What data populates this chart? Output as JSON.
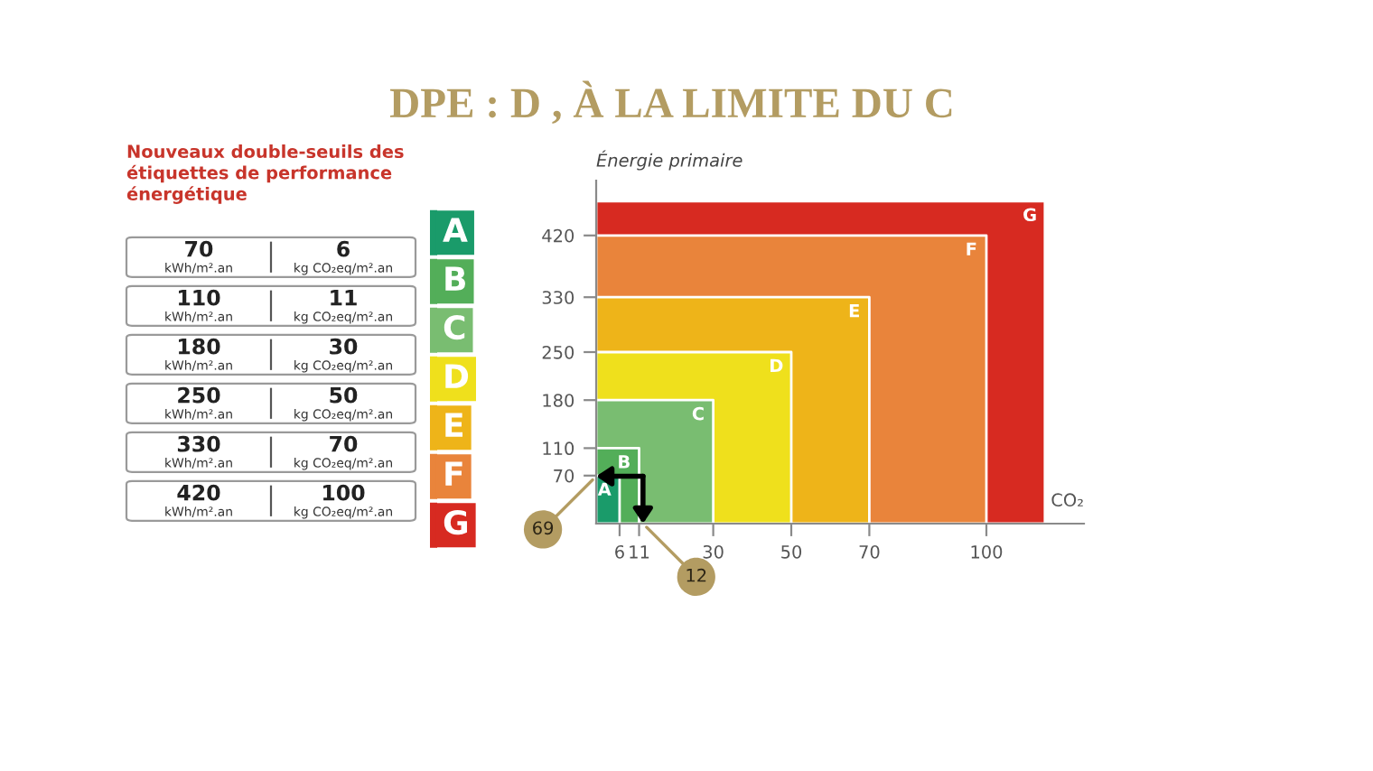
{
  "chart_data": {
    "type": "area",
    "title": "DPE : D , À LA LIMITE DU C",
    "xlabel": "CO₂",
    "ylabel": "Énergie primaire",
    "series": [
      {
        "name": "A",
        "color": "#1a9b6a",
        "x": [
          0,
          6
        ],
        "values": [
          70,
          70
        ]
      },
      {
        "name": "B",
        "color": "#53ae59",
        "x": [
          0,
          11
        ],
        "values": [
          110,
          110
        ]
      },
      {
        "name": "C",
        "color": "#79bd71",
        "x": [
          0,
          30
        ],
        "values": [
          180,
          180
        ]
      },
      {
        "name": "D",
        "color": "#efe01c",
        "x": [
          0,
          50
        ],
        "values": [
          250,
          250
        ]
      },
      {
        "name": "E",
        "color": "#eeb419",
        "x": [
          0,
          70
        ],
        "values": [
          330,
          330
        ]
      },
      {
        "name": "F",
        "color": "#e9843b",
        "x": [
          0,
          100
        ],
        "values": [
          420,
          420
        ]
      },
      {
        "name": "G",
        "color": "#d72a21",
        "x": [
          0,
          115
        ],
        "values": [
          470,
          470
        ]
      }
    ],
    "xlim": [
      0,
      125
    ],
    "ylim": [
      0,
      500
    ],
    "xticks": [
      6,
      11,
      30,
      50,
      70,
      100
    ],
    "yticks": [
      70,
      110,
      180,
      250,
      330,
      420
    ],
    "legend": "left",
    "annotations": [
      "Nouveaux double-seuils des étiquettes de performance énergétique",
      "70",
      "kWh/m².an",
      "6",
      "kg CO₂eq/m².an",
      "110",
      "kWh/m².an",
      "11",
      "kg CO₂eq/m².an",
      "180",
      "kWh/m².an",
      "30",
      "kg CO₂eq/m².an",
      "250",
      "kWh/m².an",
      "50",
      "kg CO₂eq/m².an",
      "330",
      "kWh/m².an",
      "70",
      "kg CO₂eq/m².an",
      "420",
      "kWh/m².an",
      "100",
      "kg CO₂eq/m².an",
      {
        "text": "69",
        "x": 0,
        "y": 69
      },
      {
        "text": "12",
        "x": 12,
        "y": 0
      }
    ]
  }
}
